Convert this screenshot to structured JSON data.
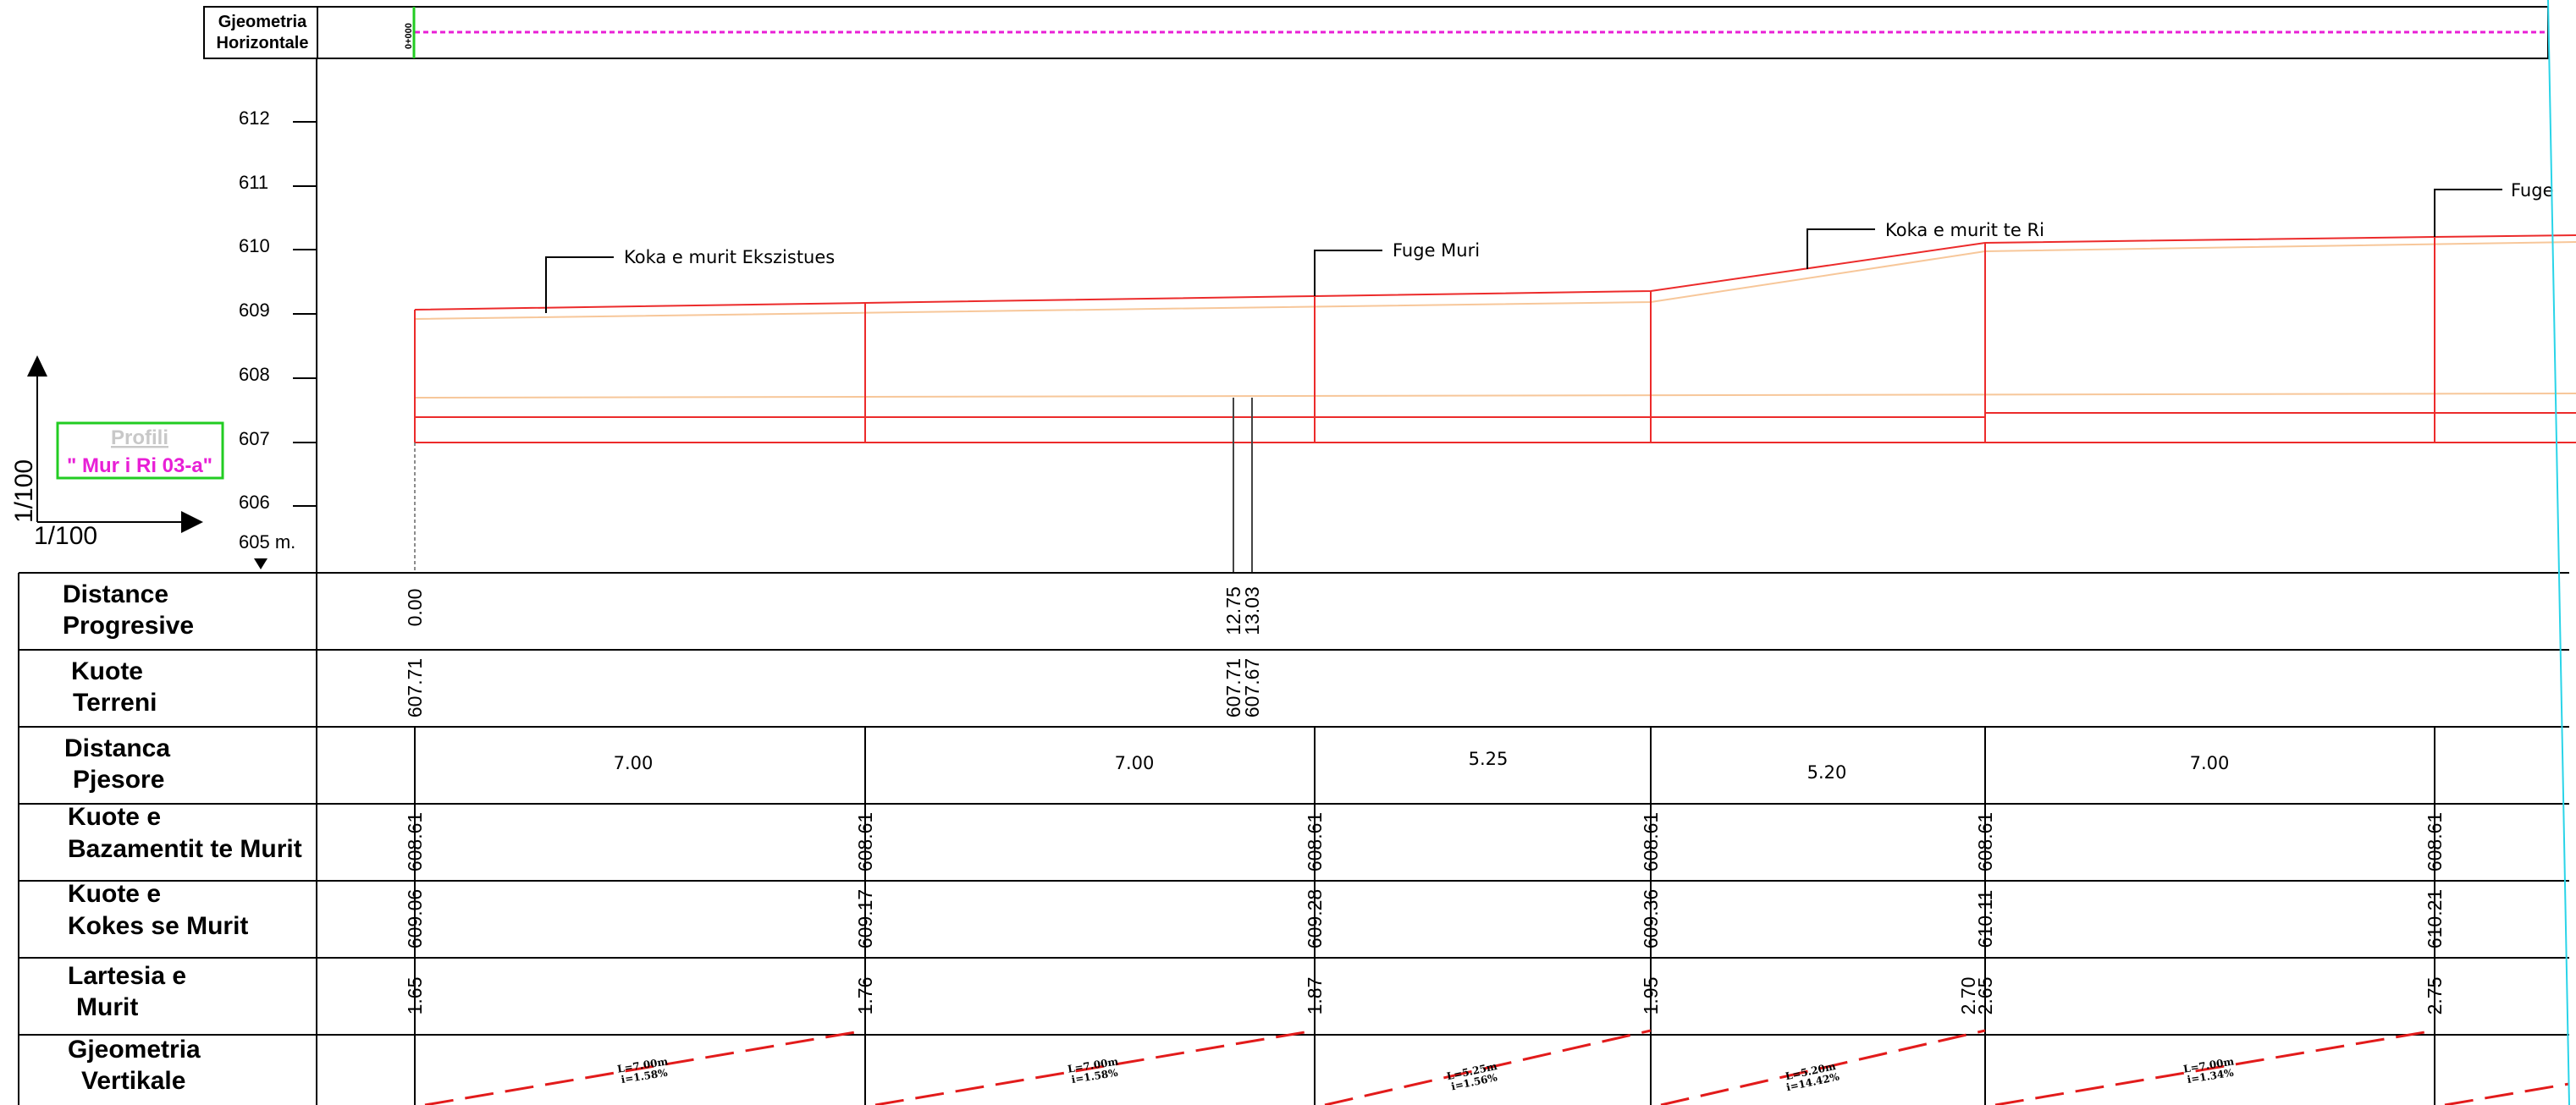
{
  "header_band": {
    "label_line1": "Gjeometria",
    "label_line2": "Horizontale",
    "station_marker": "0+000"
  },
  "profile_box": {
    "title": "Profili",
    "name": "\" Mur i Ri 03-a\"",
    "border_color": "#22cc22",
    "title_color": "#c8c8c8",
    "name_color": "#e81fd6"
  },
  "scale": {
    "vertical": "1/100",
    "horizontal": "1/100"
  },
  "elevation_axis": {
    "labels": [
      "612",
      "611",
      "610",
      "609",
      "608",
      "607",
      "606",
      "605 m."
    ]
  },
  "callouts": [
    {
      "text": "Koka e murit Ekszistues"
    },
    {
      "text": "Fuge Muri"
    },
    {
      "text": "Koka e murit te Ri"
    },
    {
      "text": "Fuge"
    }
  ],
  "rows": [
    {
      "line1": "Distance",
      "line2": "Progresive"
    },
    {
      "line1": "Kuote",
      "line2": "Terreni"
    },
    {
      "line1": "Distanca",
      "line2": "Pjesore"
    },
    {
      "line1": "Kuote e",
      "line2": "Bazamentit te Murit"
    },
    {
      "line1": "Kuote e",
      "line2": "Kokes se Murit"
    },
    {
      "line1": "Lartesia e",
      "line2": "Murit"
    },
    {
      "line1": "Gjeometria",
      "line2": "Vertikale"
    }
  ],
  "distance_progresive": [
    "0.00",
    "12.75",
    "13.03"
  ],
  "kuote_terreni": [
    "607.71",
    "607.71",
    "607.67"
  ],
  "distanca_pjesore": [
    "7.00",
    "7.00",
    "5.25",
    "5.20",
    "7.00"
  ],
  "kuote_bazamentit": [
    "608.61",
    "608.61",
    "608.61",
    "608.61",
    "608.61",
    "608.61"
  ],
  "kuote_kokes": [
    "609.06",
    "609.17",
    "609.28",
    "609.36",
    "610.11",
    "610.21"
  ],
  "lartesia_murit": [
    "1.65",
    "1.76",
    "1.87",
    "1.95",
    "2.70",
    "2.65",
    "2.75"
  ],
  "gjeometria_vertikale": [
    {
      "length": "L=7.00m",
      "slope": "i=1.58%"
    },
    {
      "length": "L=7.00m",
      "slope": "i=1.58%"
    },
    {
      "length": "L=5.25m",
      "slope": "i=1.56%"
    },
    {
      "length": "L=5.20m",
      "slope": "i=14.42%"
    },
    {
      "length": "L=7.00m",
      "slope": "i=1.34%"
    }
  ],
  "colors": {
    "wall_line": "#ec2b2b",
    "terrain_line": "#f7c79a",
    "grade_line": "#e21b1b",
    "view_edge": "#2ad4e8",
    "header_dash": "#e81fd6",
    "station_tick": "#22cc22"
  }
}
